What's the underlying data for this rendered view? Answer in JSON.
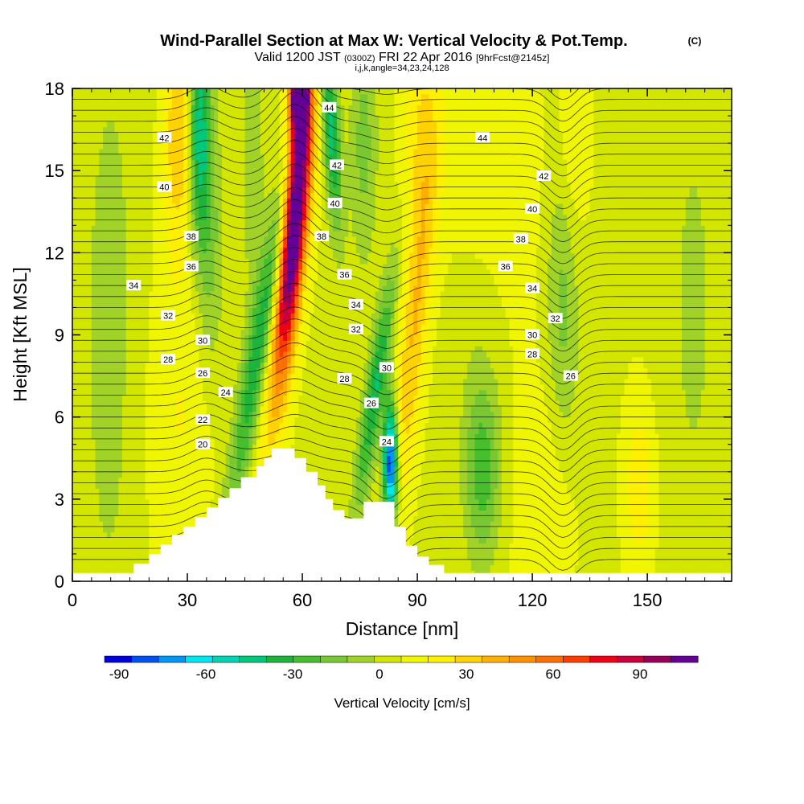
{
  "chart_data": {
    "type": "heatmap",
    "title": "Wind-Parallel Section at Max W: Vertical Velocity & Pot.Temp.",
    "title_mark": "(C)",
    "subtitle": {
      "valid_label": "Valid 1200 JST",
      "utc_time": "(0300Z)",
      "date": "FRI 22 Apr 2016",
      "forecast": "[9hrFcst@2145z]"
    },
    "grid_info": "i,j,k,angle=34,23,24,128",
    "xlabel": "Distance [nm]",
    "ylabel": "Height [Kft MSL]",
    "xlim": [
      0,
      172
    ],
    "ylim": [
      0,
      18
    ],
    "x_ticks": [
      0,
      30,
      60,
      90,
      120,
      150
    ],
    "y_ticks": [
      0,
      3,
      6,
      9,
      12,
      15,
      18
    ],
    "colorbar": {
      "label": "Vertical Velocity [cm/s]",
      "range": [
        -95,
        110
      ],
      "tick_values": [
        -90,
        -60,
        -30,
        0,
        30,
        60,
        90
      ],
      "colors": [
        "#0000dc",
        "#0050f0",
        "#0096f5",
        "#00e6f0",
        "#00d2b4",
        "#00c87a",
        "#1eb43c",
        "#46be2d",
        "#78c832",
        "#a0d228",
        "#d2e600",
        "#f0f500",
        "#fff000",
        "#ffd200",
        "#ffaf00",
        "#ff9100",
        "#ff6e00",
        "#ff3c00",
        "#f00014",
        "#c8003c",
        "#96005a",
        "#640096"
      ]
    },
    "terrain": [
      [
        0,
        0.3
      ],
      [
        16,
        0.3
      ],
      [
        16,
        0.65
      ],
      [
        20,
        0.65
      ],
      [
        20,
        1.0
      ],
      [
        23,
        1.0
      ],
      [
        23,
        1.35
      ],
      [
        26,
        1.35
      ],
      [
        26,
        1.7
      ],
      [
        29,
        1.7
      ],
      [
        29,
        2.0
      ],
      [
        32,
        2.0
      ],
      [
        32,
        2.35
      ],
      [
        35,
        2.35
      ],
      [
        35,
        2.7
      ],
      [
        38,
        2.7
      ],
      [
        38,
        3.05
      ],
      [
        41,
        3.05
      ],
      [
        41,
        3.4
      ],
      [
        44,
        3.4
      ],
      [
        44,
        3.8
      ],
      [
        48,
        3.8
      ],
      [
        48,
        4.2
      ],
      [
        50,
        4.2
      ],
      [
        50,
        4.5
      ],
      [
        52,
        4.5
      ],
      [
        52,
        4.85
      ],
      [
        58,
        4.85
      ],
      [
        58,
        4.5
      ],
      [
        61,
        4.5
      ],
      [
        61,
        4.0
      ],
      [
        64,
        4.0
      ],
      [
        64,
        3.5
      ],
      [
        66,
        3.5
      ],
      [
        66,
        3.0
      ],
      [
        68,
        3.0
      ],
      [
        68,
        2.6
      ],
      [
        71,
        2.6
      ],
      [
        71,
        2.3
      ],
      [
        76,
        2.3
      ],
      [
        76,
        2.9
      ],
      [
        84,
        2.9
      ],
      [
        84,
        2.0
      ],
      [
        87,
        2.0
      ],
      [
        87,
        1.3
      ],
      [
        90,
        1.3
      ],
      [
        90,
        0.9
      ],
      [
        93,
        0.9
      ],
      [
        93,
        0.6
      ],
      [
        97,
        0.6
      ],
      [
        97,
        0.3
      ],
      [
        172,
        0.3
      ]
    ],
    "updrafts": [
      {
        "x": 58.5,
        "y": 14.5,
        "sx": 2.2,
        "sy": 4.0,
        "tilt": 0.14,
        "value": 95
      },
      {
        "x": 56.0,
        "y": 11.0,
        "sx": 3.0,
        "sy": 4.5,
        "tilt": 0.22,
        "value": 45
      },
      {
        "x": 59.0,
        "y": 17.8,
        "sx": 1.6,
        "sy": 1.0,
        "tilt": 0.0,
        "value": 110
      },
      {
        "x": 89.0,
        "y": 9.0,
        "sx": 2.5,
        "sy": 4.5,
        "tilt": 0.15,
        "value": 30
      },
      {
        "x": 91.0,
        "y": 16.5,
        "sx": 3.5,
        "sy": 3.0,
        "tilt": 0.0,
        "value": 18
      },
      {
        "x": 28.0,
        "y": 16.5,
        "sx": 3.0,
        "sy": 3.0,
        "tilt": 0.0,
        "value": 30
      },
      {
        "x": 28.0,
        "y": 6.0,
        "sx": 7.0,
        "sy": 5.0,
        "tilt": 0.0,
        "value": 12
      },
      {
        "x": 108.0,
        "y": 15.0,
        "sx": 10.0,
        "sy": 3.5,
        "tilt": 0.0,
        "value": 14
      },
      {
        "x": 130.0,
        "y": 16.0,
        "sx": 3.0,
        "sy": 3.0,
        "tilt": 0.0,
        "value": 18
      },
      {
        "x": 148.0,
        "y": 3.5,
        "sx": 3.0,
        "sy": 2.5,
        "tilt": 0.0,
        "value": 18
      },
      {
        "x": 108.0,
        "y": 6.0,
        "sx": 8.0,
        "sy": 5.0,
        "tilt": 0.0,
        "value": 10
      },
      {
        "x": 125.0,
        "y": 3.0,
        "sx": 5.0,
        "sy": 3.0,
        "tilt": 0.0,
        "value": 12
      }
    ],
    "downdrafts": [
      {
        "x": 83.0,
        "y": 4.3,
        "sx": 1.3,
        "sy": 1.6,
        "tilt": 0.0,
        "value": -95
      },
      {
        "x": 79.0,
        "y": 7.0,
        "sx": 1.8,
        "sy": 3.0,
        "tilt": 0.25,
        "value": -45
      },
      {
        "x": 50.0,
        "y": 9.5,
        "sx": 2.5,
        "sy": 5.0,
        "tilt": 0.3,
        "value": -50
      },
      {
        "x": 33.0,
        "y": 16.5,
        "sx": 2.0,
        "sy": 3.0,
        "tilt": 0.0,
        "value": -55
      },
      {
        "x": 67.5,
        "y": 16.5,
        "sx": 1.6,
        "sy": 2.5,
        "tilt": -0.1,
        "value": -50
      },
      {
        "x": 36.0,
        "y": 12.0,
        "sx": 2.5,
        "sy": 3.5,
        "tilt": 0.0,
        "value": -20
      },
      {
        "x": 107.0,
        "y": 4.0,
        "sx": 3.5,
        "sy": 2.5,
        "tilt": 0.0,
        "value": -35
      },
      {
        "x": 106.0,
        "y": 10.0,
        "sx": 7.0,
        "sy": 5.0,
        "tilt": 0.0,
        "value": -12
      },
      {
        "x": 128.0,
        "y": 11.0,
        "sx": 3.0,
        "sy": 5.0,
        "tilt": 0.0,
        "value": -22
      },
      {
        "x": 76.0,
        "y": 16.0,
        "sx": 2.5,
        "sy": 3.0,
        "tilt": 0.0,
        "value": -20
      },
      {
        "x": 10.0,
        "y": 9.0,
        "sx": 6.0,
        "sy": 9.0,
        "tilt": 0.0,
        "value": -10
      },
      {
        "x": 162.0,
        "y": 10.0,
        "sx": 6.0,
        "sy": 8.0,
        "tilt": 0.0,
        "value": -8
      },
      {
        "x": 47.0,
        "y": 15.0,
        "sx": 2.0,
        "sy": 3.0,
        "tilt": 0.0,
        "value": -15
      }
    ],
    "background_value": 5,
    "theta_labels": [
      {
        "text": "42",
        "x": 24,
        "y": 16.2
      },
      {
        "text": "40",
        "x": 24,
        "y": 14.4
      },
      {
        "text": "38",
        "x": 31,
        "y": 12.6
      },
      {
        "text": "36",
        "x": 31,
        "y": 11.5
      },
      {
        "text": "34",
        "x": 16,
        "y": 10.8
      },
      {
        "text": "32",
        "x": 25,
        "y": 9.7
      },
      {
        "text": "30",
        "x": 34,
        "y": 8.8
      },
      {
        "text": "28",
        "x": 25,
        "y": 8.1
      },
      {
        "text": "26",
        "x": 34,
        "y": 7.6
      },
      {
        "text": "24",
        "x": 40,
        "y": 6.9
      },
      {
        "text": "22",
        "x": 34,
        "y": 5.9
      },
      {
        "text": "20",
        "x": 34,
        "y": 5.0
      },
      {
        "text": "44",
        "x": 67,
        "y": 17.3
      },
      {
        "text": "42",
        "x": 69,
        "y": 15.2
      },
      {
        "text": "40",
        "x": 68.5,
        "y": 13.8
      },
      {
        "text": "38",
        "x": 65,
        "y": 12.6
      },
      {
        "text": "36",
        "x": 71,
        "y": 11.2
      },
      {
        "text": "34",
        "x": 74,
        "y": 10.1
      },
      {
        "text": "32",
        "x": 74,
        "y": 9.2
      },
      {
        "text": "30",
        "x": 82,
        "y": 7.8
      },
      {
        "text": "28",
        "x": 71,
        "y": 7.4
      },
      {
        "text": "26",
        "x": 78,
        "y": 6.5
      },
      {
        "text": "24",
        "x": 82,
        "y": 5.1
      },
      {
        "text": "44",
        "x": 107,
        "y": 16.2
      },
      {
        "text": "42",
        "x": 123,
        "y": 14.8
      },
      {
        "text": "40",
        "x": 120,
        "y": 13.6
      },
      {
        "text": "38",
        "x": 117,
        "y": 12.5
      },
      {
        "text": "36",
        "x": 113,
        "y": 11.5
      },
      {
        "text": "34",
        "x": 120,
        "y": 10.7
      },
      {
        "text": "32",
        "x": 126,
        "y": 9.6
      },
      {
        "text": "30",
        "x": 120,
        "y": 9.0
      },
      {
        "text": "28",
        "x": 120,
        "y": 8.3
      },
      {
        "text": "26",
        "x": 130,
        "y": 7.5
      }
    ]
  }
}
